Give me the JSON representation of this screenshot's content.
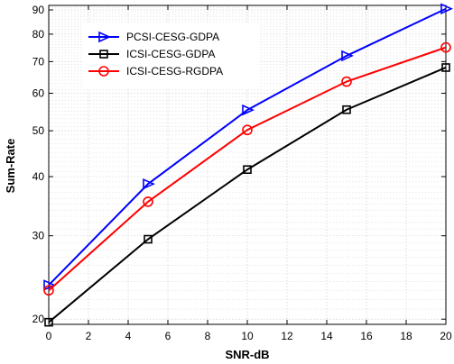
{
  "chart_data": {
    "type": "line",
    "title": "",
    "xlabel": "SNR-dB",
    "ylabel": "Sum-Rate",
    "xlim": [
      0,
      20
    ],
    "ylim": [
      19.5,
      92
    ],
    "yscale": "log",
    "grid": true,
    "legend_position": "top-left",
    "x_ticks": [
      "0",
      "2",
      "4",
      "6",
      "8",
      "10",
      "12",
      "14",
      "16",
      "18",
      "20"
    ],
    "y_ticks": [
      "20",
      "30",
      "40",
      "50",
      "60",
      "70",
      "80",
      "90"
    ],
    "x": [
      0,
      5,
      10,
      15,
      20
    ],
    "series": [
      {
        "name": "PCSI-CESG-GDPA",
        "color": "#0000ff",
        "marker": "triangle-right",
        "values": [
          23.6,
          38.6,
          55.3,
          72.0,
          90.5
        ]
      },
      {
        "name": "ICSI-CESG-GDPA",
        "color": "#000000",
        "marker": "square",
        "values": [
          19.7,
          29.5,
          41.4,
          55.4,
          68.0
        ]
      },
      {
        "name": "ICSI-CESG-RGDPA",
        "color": "#ff0000",
        "marker": "circle",
        "values": [
          23.0,
          35.4,
          50.2,
          63.5,
          75.0
        ]
      }
    ]
  }
}
